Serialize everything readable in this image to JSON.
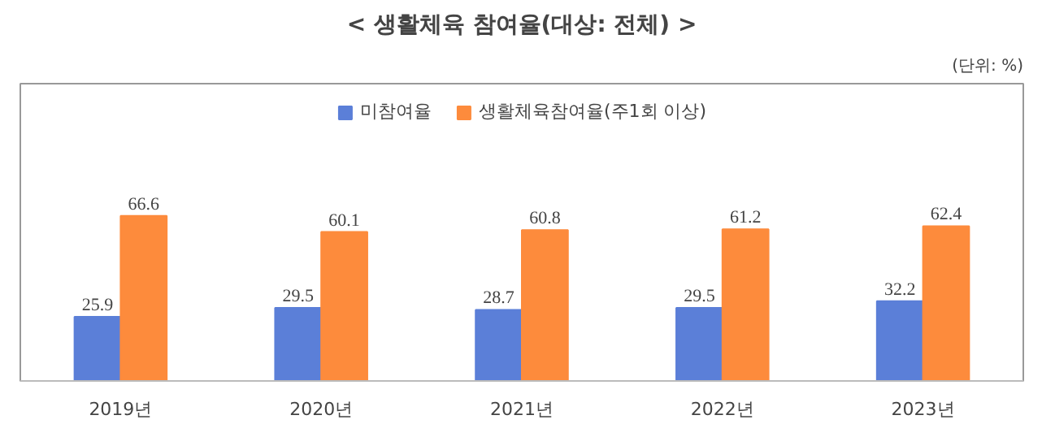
{
  "chart_data": {
    "type": "bar",
    "title": "< 생활체육 참여율(대상: 전체) >",
    "annotations": [
      "(단위: %)"
    ],
    "categories": [
      "2019년",
      "2020년",
      "2021년",
      "2022년",
      "2023년"
    ],
    "series": [
      {
        "name": "미참여율",
        "color": "#5b7fd8",
        "values": [
          25.9,
          29.5,
          28.7,
          29.5,
          32.2
        ]
      },
      {
        "name": "생활체육참여율(주1회 이상)",
        "color": "#fd8b3c",
        "values": [
          66.6,
          60.1,
          60.8,
          61.2,
          62.4
        ]
      }
    ],
    "data_labels": true,
    "legend": "top",
    "tick_labels": "x",
    "grid": false
  }
}
